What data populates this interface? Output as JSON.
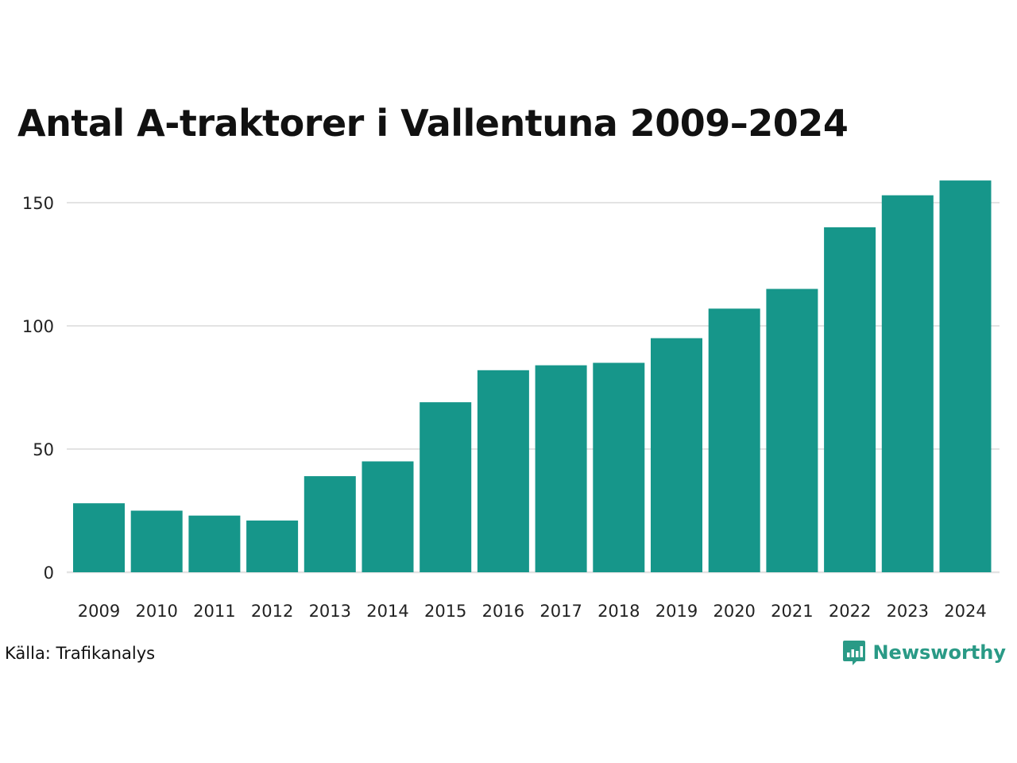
{
  "title": "Antal A-traktorer i Vallentuna 2009–2024",
  "source": "Källa: Trafikanalys",
  "brand": {
    "name": "Newsworthy",
    "icon": "bar-chart-speech-bubble-icon",
    "color": "#2a9a86"
  },
  "chart_data": {
    "type": "bar",
    "title": "Antal A-traktorer i Vallentuna 2009–2024",
    "xlabel": "",
    "ylabel": "",
    "categories": [
      "2009",
      "2010",
      "2011",
      "2012",
      "2013",
      "2014",
      "2015",
      "2016",
      "2017",
      "2018",
      "2019",
      "2020",
      "2021",
      "2022",
      "2023",
      "2024"
    ],
    "values": [
      28,
      25,
      23,
      21,
      39,
      45,
      69,
      82,
      84,
      85,
      95,
      107,
      115,
      140,
      153,
      159
    ],
    "ylim": [
      0,
      160
    ],
    "yticks": [
      0,
      50,
      100,
      150
    ],
    "grid": true,
    "bar_color": "#16968a",
    "grid_color": "#e3e3e3"
  }
}
